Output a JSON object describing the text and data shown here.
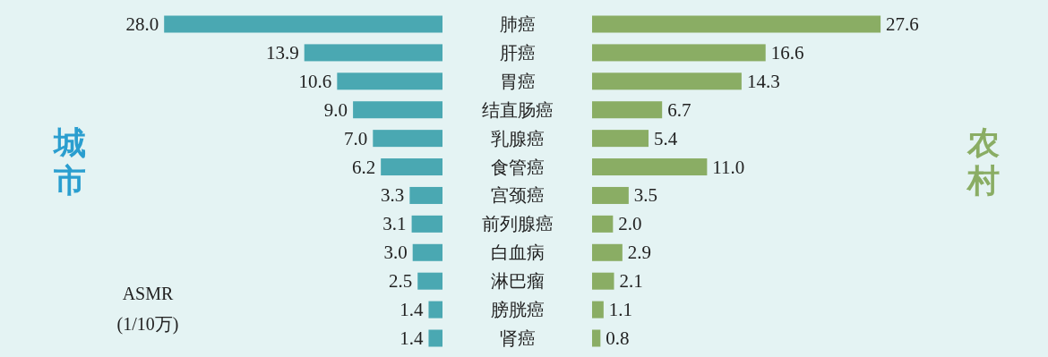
{
  "chart_data": [
    {
      "type": "bar",
      "orientation": "horizontal",
      "categories": [
        "肺癌",
        "肝癌",
        "胃癌",
        "结直肠癌",
        "乳腺癌",
        "食管癌",
        "宫颈癌",
        "前列腺癌",
        "白血病",
        "淋巴瘤",
        "膀胱癌",
        "肾癌"
      ],
      "series": [
        {
          "name": "城市",
          "color": "#4aa8b2",
          "values": [
            28.0,
            13.9,
            10.6,
            9.0,
            7.0,
            6.2,
            3.3,
            3.1,
            3.0,
            2.5,
            1.4,
            1.4
          ],
          "value_labels": [
            "28.0",
            "13.9",
            "10.6",
            "9.0",
            "7.0",
            "6.2",
            "3.3",
            "3.1",
            "3.0",
            "2.5",
            "1.4",
            "1.4"
          ]
        }
      ],
      "annotations": [
        "ASMR (1/10万)"
      ]
    },
    {
      "type": "bar",
      "orientation": "horizontal",
      "categories": [
        null,
        null,
        null,
        null,
        null,
        null,
        null,
        null,
        null,
        null,
        null,
        null
      ],
      "series": [
        {
          "name": "农村",
          "color": "#8aad64",
          "values": [
            27.6,
            16.6,
            14.3,
            6.7,
            5.4,
            11.0,
            3.5,
            2.0,
            2.9,
            2.1,
            1.1,
            0.8
          ],
          "value_labels": [
            "27.6",
            "16.6",
            "14.3",
            "6.7",
            "5.4",
            "11.0",
            "3.5",
            "2.0",
            "2.9",
            "2.1",
            "1.1",
            "0.8"
          ]
        }
      ],
      "grid": false
    }
  ]
}
